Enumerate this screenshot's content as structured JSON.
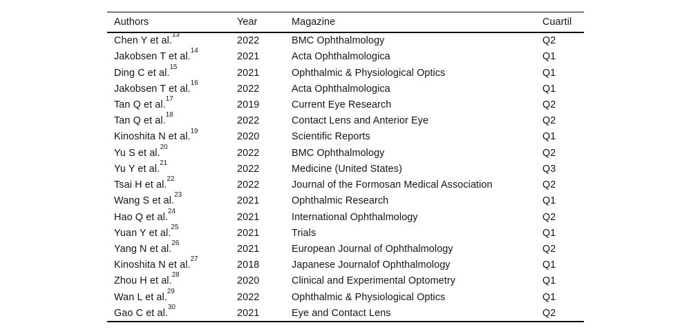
{
  "page": {
    "background_color": "#ffffff",
    "text_color": "#141414",
    "rule_color": "#000000"
  },
  "table": {
    "headers": [
      "Authors",
      "Year",
      "Magazine",
      "Cuartil"
    ],
    "rows": [
      {
        "author": "Chen Y et al.",
        "ref": "13",
        "year": "2022",
        "magazine": "BMC Ophthalmology",
        "cuartil": "Q2"
      },
      {
        "author": "Jakobsen T et al.",
        "ref": "14",
        "year": "2021",
        "magazine": "Acta Ophthalmologica",
        "cuartil": "Q1"
      },
      {
        "author": "Ding C et al.",
        "ref": "15",
        "year": "2021",
        "magazine": "Ophthalmic & Physiological Optics",
        "cuartil": "Q1"
      },
      {
        "author": "Jakobsen T et al.",
        "ref": "16",
        "year": "2022",
        "magazine": "Acta Ophthalmologica",
        "cuartil": "Q1"
      },
      {
        "author": "Tan Q et al.",
        "ref": "17",
        "year": "2019",
        "magazine": "Current Eye Research",
        "cuartil": "Q2"
      },
      {
        "author": "Tan Q et al.",
        "ref": "18",
        "year": "2022",
        "magazine": "Contact Lens and Anterior Eye",
        "cuartil": "Q2"
      },
      {
        "author": "Kinoshita N et al.",
        "ref": "19",
        "year": "2020",
        "magazine": "Scientific Reports",
        "cuartil": "Q1"
      },
      {
        "author": "Yu S et al.",
        "ref": "20",
        "year": "2022",
        "magazine": "BMC Ophthalmology",
        "cuartil": "Q2"
      },
      {
        "author": "Yu Y et al.",
        "ref": "21",
        "year": "2022",
        "magazine": "Medicine (United States)",
        "cuartil": "Q3"
      },
      {
        "author": "Tsai H et al.",
        "ref": "22",
        "year": "2022",
        "magazine": "Journal of the Formosan Medical Association",
        "cuartil": "Q2"
      },
      {
        "author": "Wang S et al.",
        "ref": "23",
        "year": "2021",
        "magazine": "Ophthalmic Research",
        "cuartil": "Q1"
      },
      {
        "author": "Hao Q et al.",
        "ref": "24",
        "year": "2021",
        "magazine": "International Ophthalmology",
        "cuartil": "Q2"
      },
      {
        "author": "Yuan Y et al.",
        "ref": "25",
        "year": "2021",
        "magazine": "Trials",
        "cuartil": "Q1"
      },
      {
        "author": "Yang N et al.",
        "ref": "26",
        "year": "2021",
        "magazine": "European Journal of Ophthalmology",
        "cuartil": "Q2"
      },
      {
        "author": "Kinoshita N et al.",
        "ref": "27",
        "year": "2018",
        "magazine": "Japanese Journalof Ophthalmology",
        "cuartil": "Q1"
      },
      {
        "author": "Zhou H et al.",
        "ref": "28",
        "year": "2020",
        "magazine": "Clinical and Experimental Optometry",
        "cuartil": "Q1"
      },
      {
        "author": "Wan L et al.",
        "ref": "29",
        "year": "2022",
        "magazine": "Ophthalmic & Physiological Optics",
        "cuartil": "Q1"
      },
      {
        "author": "Gao C et al.",
        "ref": "30",
        "year": "2021",
        "magazine": "Eye and Contact Lens",
        "cuartil": "Q2"
      }
    ]
  }
}
